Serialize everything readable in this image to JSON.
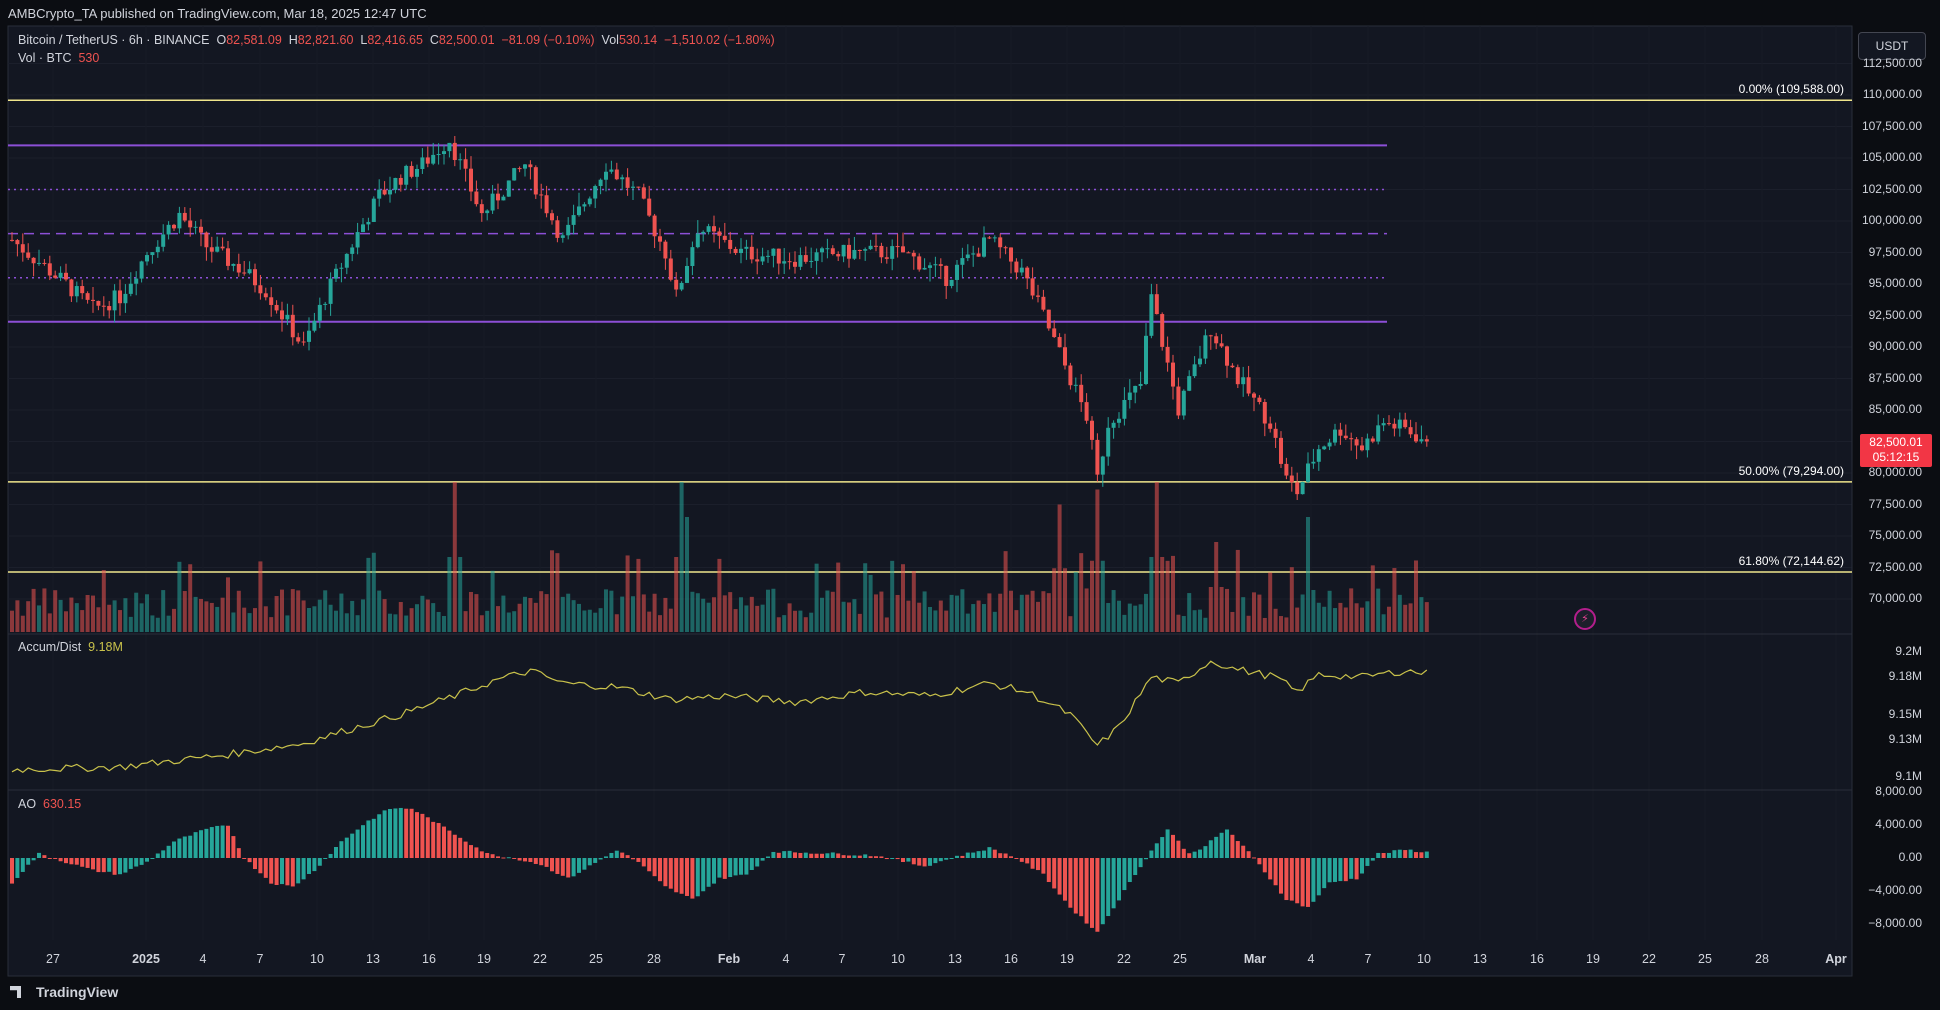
{
  "header": {
    "published": "AMBCrypto_TA published on TradingView.com, Mar 18, 2025 12:47 UTC"
  },
  "legend": {
    "symbol": "Bitcoin / TetherUS · 6h · BINANCE",
    "o_label": "O",
    "o": "82,581.09",
    "h_label": "H",
    "h": "82,821.60",
    "l_label": "L",
    "l": "82,416.65",
    "c_label": "C",
    "c": "82,500.01",
    "chg": "−81.09 (−0.10%)",
    "vol_label": "Vol",
    "vol": "530.14",
    "vol_chg": "−1,510.02 (−1.80%)",
    "volbtc_label": "Vol · BTC",
    "volbtc": "530"
  },
  "currency_button": "USDT",
  "last_price": {
    "price": "82,500.01",
    "countdown": "05:12:15"
  },
  "accum_label": "Accum/Dist",
  "accum_value": "9.18M",
  "ao_label": "AO",
  "ao_value": "630.15",
  "footer": {
    "brand": "TradingView"
  },
  "colors": {
    "up": "#26a69a",
    "down": "#ef5350",
    "fib": "#f0e68c",
    "range": "#8c4fd6",
    "accum": "#c9c24b",
    "bg": "#131722"
  },
  "chart_data": [
    {
      "type": "candlestick",
      "title": "Bitcoin / TetherUS · 6h · BINANCE",
      "ylim": [
        67500,
        115000
      ],
      "y_ticks": [
        "112,500.00",
        "110,000.00",
        "107,500.00",
        "105,000.00",
        "102,500.00",
        "100,000.00",
        "97,500.00",
        "95,000.00",
        "92,500.00",
        "90,000.00",
        "87,500.00",
        "85,000.00",
        "82,500.00",
        "80,000.00",
        "77,500.00",
        "75,000.00",
        "72,500.00",
        "70,000.00"
      ],
      "x_ticks": [
        "27",
        "2025",
        "4",
        "7",
        "10",
        "13",
        "16",
        "19",
        "22",
        "25",
        "28",
        "Feb",
        "4",
        "7",
        "10",
        "13",
        "16",
        "19",
        "22",
        "25",
        "Mar",
        "4",
        "7",
        "10",
        "13",
        "16",
        "19",
        "22",
        "25",
        "28",
        "Apr"
      ],
      "fib_levels": [
        {
          "label": "0.00% (109,588.00)",
          "value": 109588
        },
        {
          "label": "50.00% (79,294.00)",
          "value": 79294
        },
        {
          "label": "61.80% (72,144.62)",
          "value": 72144.62
        }
      ],
      "range_levels": [
        106000,
        102500,
        99000,
        95500,
        92000
      ],
      "close_path": [
        [
          0,
          98500
        ],
        [
          10,
          95000
        ],
        [
          15,
          93000
        ],
        [
          20,
          94000
        ],
        [
          25,
          97500
        ],
        [
          31,
          100500
        ],
        [
          36,
          98000
        ],
        [
          43,
          96000
        ],
        [
          47,
          94500
        ],
        [
          54,
          90000
        ],
        [
          58,
          94000
        ],
        [
          64,
          99000
        ],
        [
          68,
          102000
        ],
        [
          72,
          103500
        ],
        [
          76,
          104500
        ],
        [
          81,
          106500
        ],
        [
          87,
          100500
        ],
        [
          95,
          104500
        ],
        [
          102,
          98500
        ],
        [
          110,
          104500
        ],
        [
          116,
          102000
        ],
        [
          121,
          97500
        ],
        [
          123,
          94000
        ],
        [
          127,
          99500
        ],
        [
          135,
          97500
        ],
        [
          145,
          97000
        ],
        [
          155,
          97500
        ],
        [
          165,
          97500
        ],
        [
          173,
          95500
        ],
        [
          181,
          98500
        ],
        [
          187,
          96000
        ],
        [
          191,
          92500
        ],
        [
          195,
          88500
        ],
        [
          199,
          84500
        ],
        [
          201,
          79500
        ],
        [
          203,
          84000
        ],
        [
          209,
          87000
        ],
        [
          211,
          94000
        ],
        [
          216,
          85000
        ],
        [
          222,
          91500
        ],
        [
          227,
          87500
        ],
        [
          233,
          84000
        ],
        [
          236,
          79500
        ],
        [
          238,
          78500
        ],
        [
          242,
          82000
        ],
        [
          246,
          83500
        ],
        [
          250,
          82000
        ],
        [
          254,
          84000
        ],
        [
          258,
          83500
        ],
        [
          262,
          82500
        ]
      ],
      "volume_peaks": [
        [
          82,
          1.0
        ],
        [
          124,
          1.0
        ],
        [
          194,
          0.85
        ],
        [
          201,
          0.95
        ],
        [
          212,
          1.0
        ],
        [
          223,
          0.6
        ],
        [
          240,
          0.5
        ]
      ],
      "last": 82500.01
    },
    {
      "type": "line",
      "name": "Accum/Dist",
      "ylim": [
        9.1,
        9.2
      ],
      "y_ticks": [
        "9.2M",
        "9.18M",
        "9.15M",
        "9.13M",
        "9.1M"
      ],
      "path": [
        [
          0,
          9.106
        ],
        [
          20,
          9.108
        ],
        [
          40,
          9.118
        ],
        [
          54,
          9.127
        ],
        [
          60,
          9.135
        ],
        [
          72,
          9.15
        ],
        [
          82,
          9.165
        ],
        [
          90,
          9.178
        ],
        [
          96,
          9.185
        ],
        [
          102,
          9.175
        ],
        [
          112,
          9.172
        ],
        [
          122,
          9.162
        ],
        [
          132,
          9.165
        ],
        [
          145,
          9.16
        ],
        [
          158,
          9.168
        ],
        [
          170,
          9.165
        ],
        [
          181,
          9.175
        ],
        [
          188,
          9.168
        ],
        [
          196,
          9.15
        ],
        [
          201,
          9.125
        ],
        [
          205,
          9.14
        ],
        [
          211,
          9.18
        ],
        [
          216,
          9.175
        ],
        [
          222,
          9.193
        ],
        [
          226,
          9.187
        ],
        [
          234,
          9.18
        ],
        [
          238,
          9.168
        ],
        [
          242,
          9.182
        ],
        [
          250,
          9.18
        ],
        [
          258,
          9.185
        ],
        [
          262,
          9.183
        ]
      ],
      "last": 9.18
    },
    {
      "type": "histogram",
      "name": "AO",
      "ylim": [
        -10000,
        6000
      ],
      "y_ticks": [
        "8,000.00",
        "4,000.00",
        "0.00",
        "−4,000.00",
        "−8,000.00"
      ],
      "path": [
        [
          0,
          -3000
        ],
        [
          5,
          500
        ],
        [
          10,
          -500
        ],
        [
          15,
          -1500
        ],
        [
          20,
          -2000
        ],
        [
          25,
          -500
        ],
        [
          30,
          2000
        ],
        [
          36,
          3500
        ],
        [
          40,
          4000
        ],
        [
          43,
          0
        ],
        [
          48,
          -3000
        ],
        [
          52,
          -3500
        ],
        [
          56,
          -1500
        ],
        [
          61,
          2000
        ],
        [
          66,
          4500
        ],
        [
          70,
          6000
        ],
        [
          74,
          6000
        ],
        [
          78,
          4500
        ],
        [
          83,
          2500
        ],
        [
          88,
          500
        ],
        [
          93,
          0
        ],
        [
          98,
          -800
        ],
        [
          103,
          -2500
        ],
        [
          108,
          -600
        ],
        [
          112,
          1000
        ],
        [
          116,
          -500
        ],
        [
          121,
          -3500
        ],
        [
          126,
          -5000
        ],
        [
          131,
          -2500
        ],
        [
          136,
          -2000
        ],
        [
          141,
          800
        ],
        [
          150,
          600
        ],
        [
          160,
          300
        ],
        [
          169,
          -1000
        ],
        [
          175,
          200
        ],
        [
          181,
          1200
        ],
        [
          186,
          0
        ],
        [
          191,
          -2000
        ],
        [
          196,
          -6000
        ],
        [
          201,
          -9000
        ],
        [
          205,
          -5000
        ],
        [
          210,
          0
        ],
        [
          214,
          3500
        ],
        [
          218,
          500
        ],
        [
          221,
          1500
        ],
        [
          225,
          3500
        ],
        [
          230,
          0
        ],
        [
          236,
          -5000
        ],
        [
          240,
          -6000
        ],
        [
          244,
          -3000
        ],
        [
          249,
          -2500
        ],
        [
          253,
          500
        ],
        [
          258,
          1000
        ],
        [
          262,
          700
        ]
      ],
      "last": 630.15
    }
  ]
}
